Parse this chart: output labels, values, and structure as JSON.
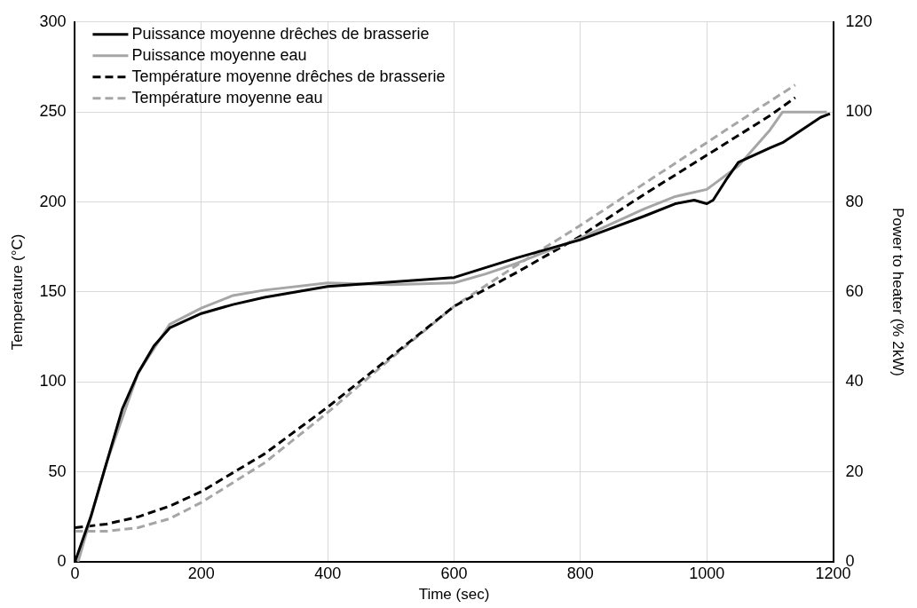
{
  "chart_data": {
    "type": "line",
    "xlabel": "Time (sec)",
    "ylabel": "Temperature (°C)",
    "y2label": "Power to heater (% 2kW)",
    "xlim": [
      0,
      1200
    ],
    "xticks": [
      0,
      200,
      400,
      600,
      800,
      1000,
      1200
    ],
    "ylim": [
      0,
      300
    ],
    "yticks": [
      0,
      50,
      100,
      150,
      200,
      250,
      300
    ],
    "y2lim": [
      0,
      120
    ],
    "y2ticks": [
      0,
      20,
      40,
      60,
      80,
      100,
      120
    ],
    "grid": true,
    "legend": "top left",
    "marker": "none",
    "series": [
      {
        "name": "Puissance moyenne drêches de brasserie",
        "color": "#000000",
        "axis": "y2",
        "line_style": "solid",
        "x": [
          0,
          25,
          50,
          75,
          100,
          125,
          150,
          200,
          250,
          300,
          400,
          500,
          600,
          700,
          800,
          900,
          950,
          980,
          1000,
          1010,
          1030,
          1050,
          1100,
          1120,
          1150,
          1180,
          1195
        ],
        "values": [
          0,
          10,
          22,
          34,
          42,
          48,
          52,
          55.2,
          57.2,
          58.8,
          61.2,
          62.2,
          63.2,
          67.6,
          71.6,
          76.8,
          79.6,
          80.4,
          79.6,
          80.4,
          84.8,
          88.8,
          92,
          93.2,
          96,
          98.8,
          99.6
        ]
      },
      {
        "name": "Puissance moyenne eau",
        "color": "#a6a6a6",
        "axis": "y2",
        "line_style": "solid",
        "x": [
          5,
          50,
          100,
          150,
          200,
          250,
          300,
          400,
          500,
          600,
          650,
          700,
          800,
          900,
          950,
          1000,
          1050,
          1100,
          1120,
          1190
        ],
        "values": [
          0,
          22,
          42,
          52.8,
          56.4,
          59.2,
          60.4,
          62,
          61.6,
          62,
          64,
          66.4,
          72,
          78.4,
          81.2,
          82.8,
          88,
          96,
          100,
          100
        ]
      },
      {
        "name": "Température moyenne drêches de brasserie",
        "color": "#000000",
        "line_style": "dashed",
        "x": [
          0,
          50,
          100,
          150,
          200,
          300,
          400,
          500,
          600,
          700,
          800,
          900,
          1000,
          1100,
          1140
        ],
        "values": [
          19,
          21,
          25,
          31,
          39,
          60,
          86,
          114,
          142,
          161,
          181,
          204,
          226,
          248,
          258
        ]
      },
      {
        "name": "Température moyenne eau",
        "color": "#a6a6a6",
        "line_style": "dashed",
        "x": [
          0,
          50,
          100,
          150,
          200,
          300,
          400,
          500,
          600,
          700,
          800,
          900,
          1000,
          1100,
          1140
        ],
        "values": [
          17,
          17,
          19,
          24,
          33,
          55,
          83,
          113,
          142,
          165,
          187,
          210,
          233,
          256,
          265
        ]
      }
    ]
  }
}
